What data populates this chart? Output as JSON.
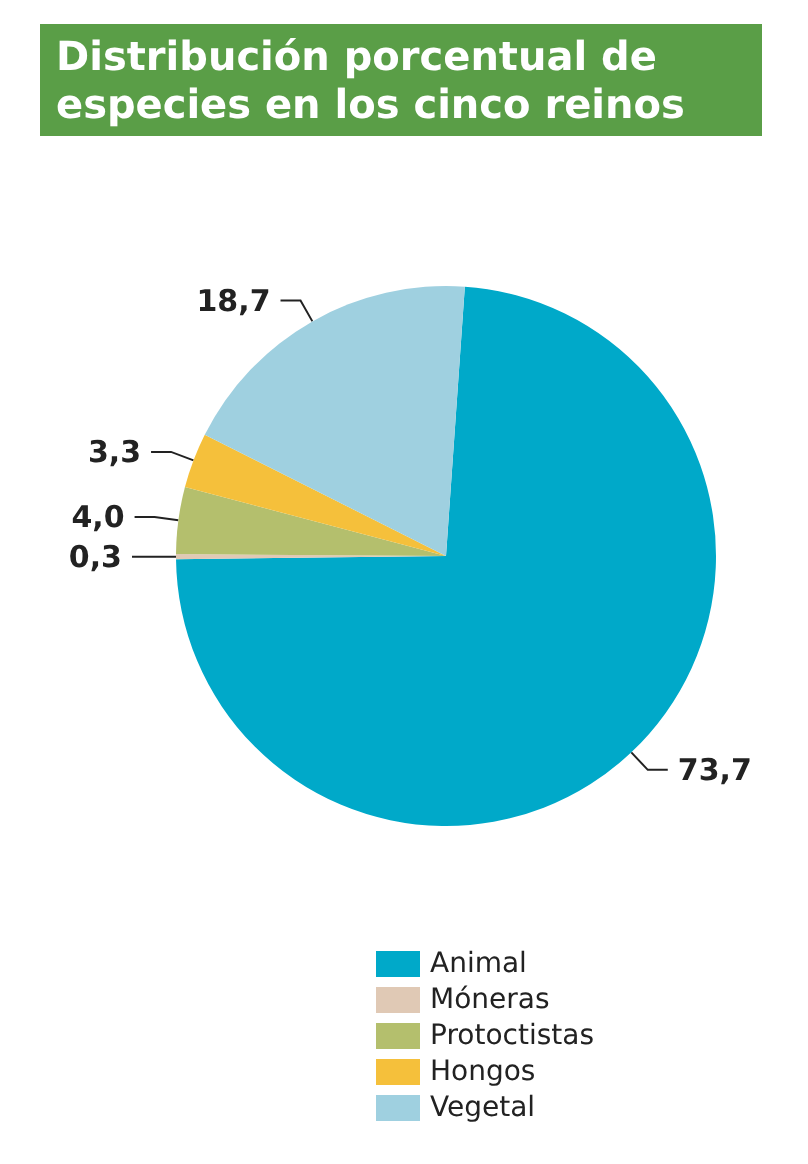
{
  "chart_data": {
    "type": "pie",
    "title": "Distribución porcentual de especies en los cinco reinos",
    "categories": [
      "Animal",
      "Móneras",
      "Protoctistas",
      "Hongos",
      "Vegetal"
    ],
    "values": [
      73.7,
      0.3,
      4.0,
      3.3,
      18.7
    ],
    "value_labels": [
      "73,7",
      "0,3",
      "4,0",
      "3,3",
      "18,7"
    ],
    "colors": [
      "#00a9c9",
      "#e0c9b5",
      "#b4bf6d",
      "#f5c03b",
      "#9fd0e0"
    ],
    "legend": "bottom"
  }
}
